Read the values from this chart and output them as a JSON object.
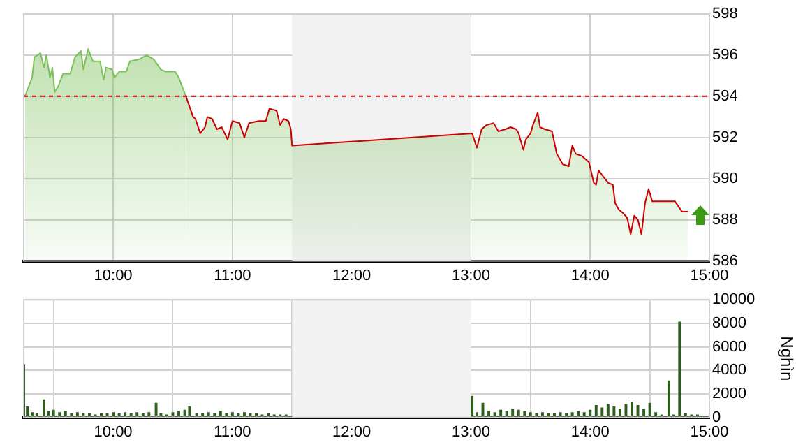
{
  "chart_data": [
    {
      "type": "area",
      "x": [
        9.26,
        9.32,
        9.34,
        9.39,
        9.42,
        9.44,
        9.47,
        9.49,
        9.51,
        9.54,
        9.58,
        9.64,
        9.68,
        9.73,
        9.75,
        9.79,
        9.83,
        9.89,
        9.92,
        9.94,
        9.99,
        10.01,
        10.05,
        10.11,
        10.14,
        10.22,
        10.28,
        10.34,
        10.4,
        10.44,
        10.52,
        10.55,
        10.61,
        10.67,
        10.69,
        10.73,
        10.77,
        10.79,
        10.83,
        10.87,
        10.91,
        10.96,
        11.0,
        11.06,
        11.1,
        11.14,
        11.22,
        11.28,
        11.31,
        11.37,
        11.4,
        11.43,
        11.47,
        11.49,
        11.5,
        13.01,
        13.02,
        13.05,
        13.09,
        13.13,
        13.19,
        13.23,
        13.29,
        13.33,
        13.38,
        13.4,
        13.44,
        13.46,
        13.5,
        13.52,
        13.56,
        13.58,
        13.62,
        13.68,
        13.72,
        13.77,
        13.82,
        13.85,
        13.88,
        13.93,
        13.99,
        14.03,
        14.05,
        14.07,
        14.11,
        14.15,
        14.19,
        14.21,
        14.24,
        14.28,
        14.31,
        14.34,
        14.37,
        14.4,
        14.43,
        14.46,
        14.49,
        14.52,
        14.71,
        14.77,
        14.82
      ],
      "series": [
        {
          "color": "#7cc05a",
          "values": [
            594.0,
            594.9,
            595.9,
            596.1,
            595.4,
            596.0,
            594.9,
            595.4,
            594.2,
            594.5,
            595.1,
            595.1,
            595.9,
            596.2,
            595.3,
            596.3,
            595.7,
            595.7,
            594.8,
            595.4,
            595.3,
            594.9,
            595.2,
            595.2,
            595.7,
            595.8,
            596.0,
            595.8,
            595.3,
            595.2,
            595.2,
            594.9,
            594.0,
            593.0,
            592.9,
            592.2,
            592.5,
            593.0,
            592.9,
            592.4,
            592.5,
            591.9,
            592.8,
            592.7,
            592.0,
            592.7,
            592.8,
            592.8,
            593.4,
            593.3,
            592.6,
            592.9,
            592.8,
            592.4,
            591.6,
            592.2,
            592.2,
            591.5,
            592.4,
            592.6,
            592.7,
            592.3,
            592.4,
            592.5,
            592.4,
            592.2,
            591.4,
            591.9,
            592.2,
            592.6,
            593.2,
            592.5,
            592.4,
            592.3,
            591.2,
            590.7,
            590.6,
            591.6,
            591.2,
            591.1,
            590.8,
            589.8,
            589.7,
            590.4,
            590.1,
            589.8,
            589.7,
            588.8,
            588.5,
            588.3,
            588.1,
            587.3,
            588.2,
            588.0,
            587.3,
            588.8,
            589.5,
            588.9,
            588.9,
            588.4,
            588.4
          ]
        }
      ],
      "xlim": [
        9.25,
        15
      ],
      "xticks": [
        {
          "value": 10,
          "label": "10:00"
        },
        {
          "value": 11,
          "label": "11:00"
        },
        {
          "value": 12,
          "label": "12:00"
        },
        {
          "value": 13,
          "label": "13:00"
        },
        {
          "value": 14,
          "label": "14:00"
        },
        {
          "value": 15,
          "label": "15:00"
        }
      ],
      "ylim": [
        586,
        598
      ],
      "yticks": [
        586,
        588,
        590,
        592,
        594,
        596,
        598
      ],
      "ref_lines": [
        {
          "axis": "y",
          "value": 594,
          "color": "#cc0000",
          "line_style": "dashed"
        }
      ],
      "bands": [
        {
          "axis": "x",
          "from": 11.5,
          "to": 13,
          "color": "#f2f2f2"
        }
      ],
      "grid": true,
      "legend": false
    },
    {
      "type": "bar",
      "x": [
        9.25,
        9.28,
        9.32,
        9.36,
        9.42,
        9.46,
        9.5,
        9.55,
        9.6,
        9.65,
        9.7,
        9.75,
        9.8,
        9.85,
        9.9,
        9.95,
        10.0,
        10.05,
        10.1,
        10.15,
        10.2,
        10.25,
        10.3,
        10.36,
        10.4,
        10.45,
        10.5,
        10.55,
        10.6,
        10.64,
        10.7,
        10.75,
        10.8,
        10.85,
        10.9,
        10.95,
        11.0,
        11.05,
        11.1,
        11.15,
        11.2,
        11.25,
        11.3,
        11.35,
        11.4,
        11.45,
        13.01,
        13.05,
        13.1,
        13.15,
        13.2,
        13.25,
        13.3,
        13.35,
        13.4,
        13.45,
        13.5,
        13.55,
        13.6,
        13.65,
        13.7,
        13.75,
        13.8,
        13.85,
        13.9,
        13.95,
        14.0,
        14.05,
        14.1,
        14.15,
        14.2,
        14.25,
        14.3,
        14.35,
        14.4,
        14.45,
        14.5,
        14.55,
        14.6,
        14.66,
        14.7,
        14.75,
        14.8,
        14.85,
        14.9
      ],
      "series": [
        {
          "color": "#2d5e1e",
          "values": [
            4500,
            900,
            400,
            300,
            1500,
            500,
            600,
            400,
            500,
            300,
            400,
            300,
            300,
            200,
            300,
            300,
            400,
            300,
            400,
            300,
            400,
            300,
            400,
            1200,
            300,
            200,
            400,
            500,
            600,
            900,
            300,
            300,
            400,
            300,
            500,
            300,
            400,
            300,
            400,
            300,
            300,
            200,
            300,
            200,
            200,
            200,
            1800,
            400,
            1200,
            500,
            400,
            600,
            500,
            700,
            600,
            500,
            400,
            300,
            400,
            300,
            300,
            400,
            300,
            400,
            500,
            400,
            600,
            1000,
            800,
            1100,
            900,
            700,
            1100,
            1300,
            1000,
            700,
            1200,
            400,
            200,
            3100,
            200,
            8100,
            300,
            200,
            200
          ]
        }
      ],
      "xlim": [
        9.25,
        15
      ],
      "xticks": [
        {
          "value": 10,
          "label": "10:00"
        },
        {
          "value": 11,
          "label": "11:00"
        },
        {
          "value": 12,
          "label": "12:00"
        },
        {
          "value": 13,
          "label": "13:00"
        },
        {
          "value": 14,
          "label": "14:00"
        },
        {
          "value": 15,
          "label": "15:00"
        }
      ],
      "ylim": [
        0,
        10000
      ],
      "yticks": [
        0,
        2000,
        4000,
        6000,
        8000,
        10000
      ],
      "ylabel": "Nghìn",
      "bands": [
        {
          "axis": "x",
          "from": 11.5,
          "to": 13,
          "color": "#f2f2f2"
        }
      ],
      "grid": true,
      "legend": false
    }
  ]
}
